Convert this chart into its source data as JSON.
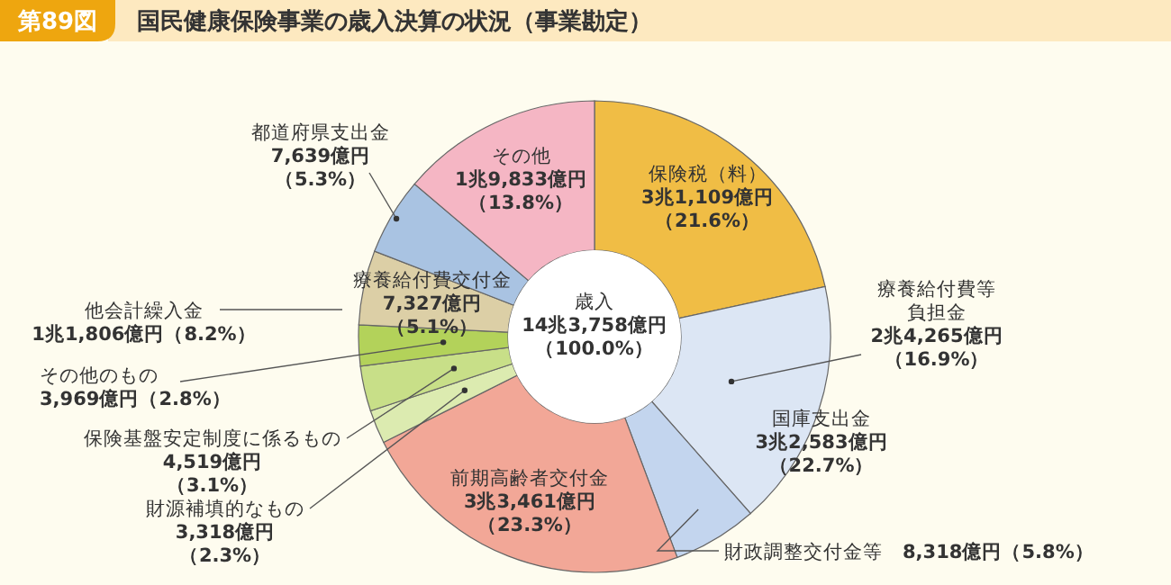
{
  "chart_data": {
    "type": "donut",
    "title": "国民健康保険事業の歳入決算の状況（事業勘定）",
    "subtitle": "第89図",
    "categories": [
      "保険税（料）",
      "療養給付費等負担金",
      "財政調整交付金等",
      "前期高齢者交付金",
      "財源補填的なもの",
      "保険基盤安定制度に係るもの",
      "その他のもの",
      "療養給付費交付金",
      "都道府県支出金",
      "その他"
    ],
    "values": [
      21.6,
      16.9,
      5.8,
      23.3,
      2.3,
      3.1,
      2.8,
      5.1,
      5.3,
      13.8
    ],
    "value_labels": [
      "3兆1,109億円（21.6%）",
      "2兆4,265億円（16.9%）",
      "8,318億円（5.8%）",
      "3兆3,461億円（23.3%）",
      "3,318億円（2.3%）",
      "4,519億円（3.1%）",
      "3,969億円（2.8%）",
      "7,327億円（5.1%）",
      "7,639億円（5.3%）",
      "1兆9,833億円（13.8%）"
    ],
    "colors": [
      "#f0bd45",
      "#dce6f4",
      "#c3d5ee",
      "#f2a797",
      "#dcebb0",
      "#c8df88",
      "#b3d25a",
      "#dccfa6",
      "#a9c3e2",
      "#f5b6c4"
    ],
    "annotations": [
      "歳入 14兆3,758億円（100.0%）",
      "国庫支出金 3兆2,583億円（22.7%）",
      "他会計繰入金 1兆1,806億円（8.2%）"
    ]
  }
}
